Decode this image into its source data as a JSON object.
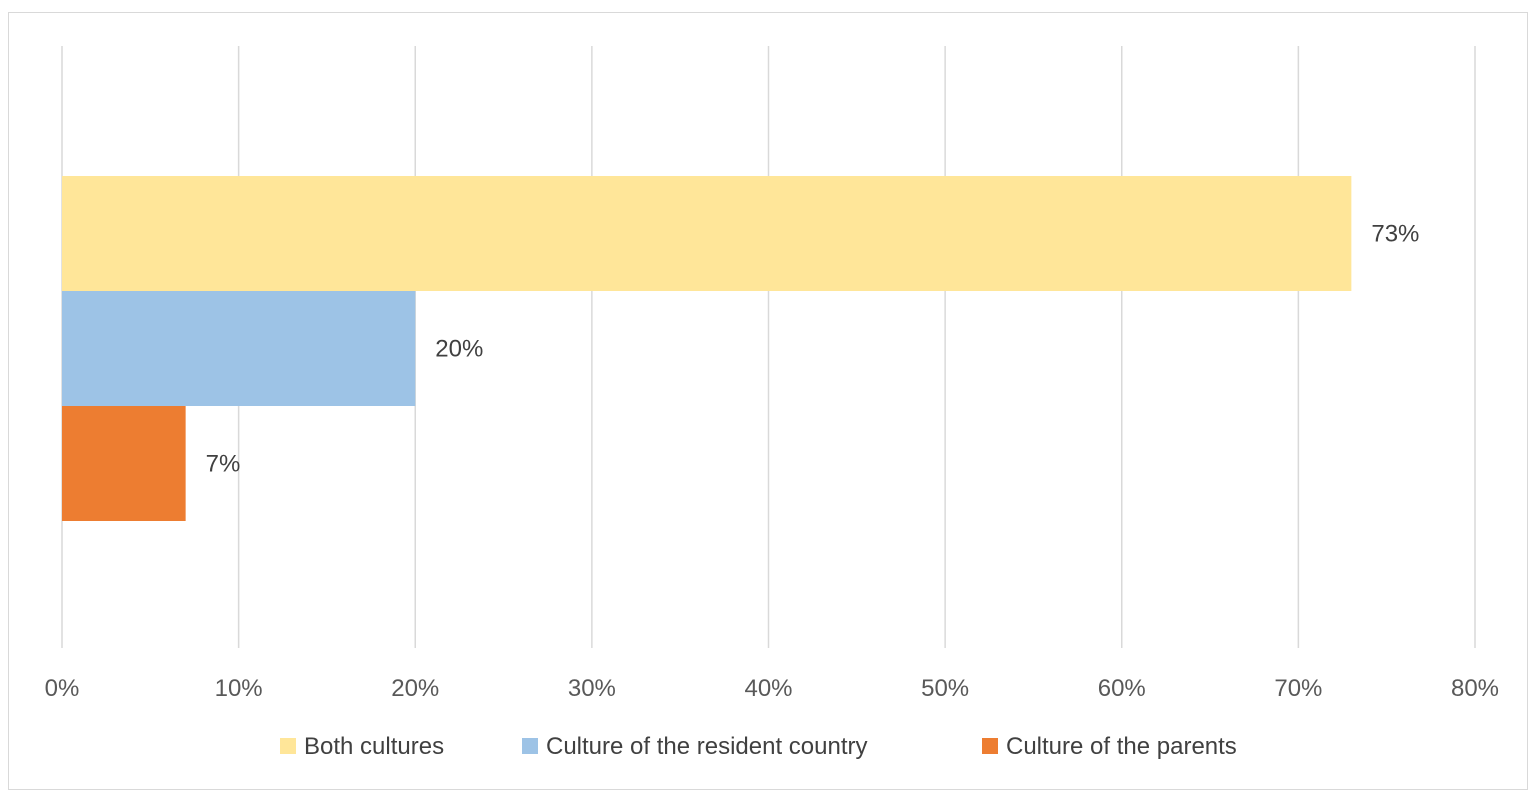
{
  "chart_data": {
    "type": "bar",
    "orientation": "horizontal",
    "title": "",
    "xlabel": "",
    "ylabel": "",
    "xlim": [
      0,
      80
    ],
    "x_ticks": [
      "0%",
      "10%",
      "20%",
      "30%",
      "40%",
      "50%",
      "60%",
      "70%",
      "80%"
    ],
    "tick_values": [
      0,
      10,
      20,
      30,
      40,
      50,
      60,
      70,
      80
    ],
    "grid": true,
    "legend_position": "bottom",
    "series": [
      {
        "name": "Both cultures",
        "value": 73,
        "label": "73%",
        "color": "#FFE699"
      },
      {
        "name": "Culture of the resident country",
        "value": 20,
        "label": "20%",
        "color": "#9DC3E6"
      },
      {
        "name": "Culture of the parents",
        "value": 7,
        "label": "7%",
        "color": "#ED7D31"
      }
    ]
  }
}
